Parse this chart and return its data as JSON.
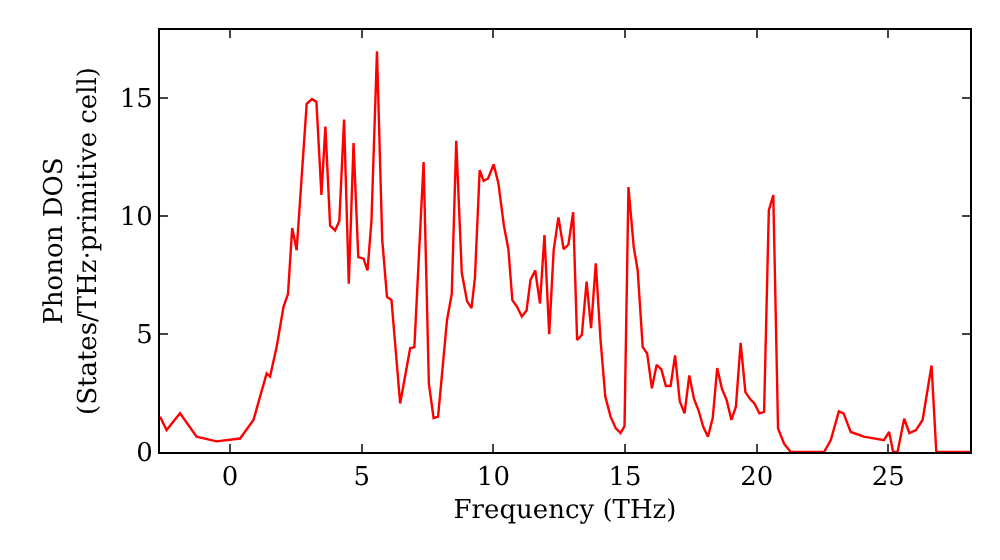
{
  "chart_data": {
    "type": "line",
    "xlabel": "Frequency (THz)",
    "ylabel": "Phonon DOS\n(States/THz·primitive cell)",
    "xlim": [
      -2.66,
      28.1
    ],
    "ylim": [
      0,
      17.9
    ],
    "xticks": [
      0,
      5,
      10,
      15,
      20,
      25
    ],
    "yticks": [
      0,
      5,
      10,
      15
    ],
    "grid": false,
    "marker": "none",
    "line_style": "solid",
    "series": [
      {
        "color": "#ff0000",
        "x": [
          -2.66,
          -2.41,
          -1.9,
          -1.27,
          -0.51,
          0.38,
          0.89,
          1.39,
          1.52,
          1.77,
          2.03,
          2.2,
          2.36,
          2.53,
          2.91,
          3.11,
          3.28,
          3.47,
          3.62,
          3.8,
          3.99,
          4.15,
          4.33,
          4.51,
          4.69,
          4.87,
          5.07,
          5.22,
          5.37,
          5.58,
          5.78,
          5.96,
          6.13,
          6.46,
          6.84,
          7.0,
          7.35,
          7.55,
          7.73,
          7.9,
          8.24,
          8.42,
          8.59,
          8.8,
          9.0,
          9.17,
          9.3,
          9.48,
          9.63,
          9.8,
          10.01,
          10.19,
          10.4,
          10.57,
          10.72,
          10.9,
          11.08,
          11.26,
          11.41,
          11.59,
          11.77,
          11.94,
          12.12,
          12.29,
          12.47,
          12.67,
          12.85,
          13.03,
          13.18,
          13.36,
          13.54,
          13.71,
          13.89,
          14.07,
          14.25,
          14.45,
          14.65,
          14.83,
          14.98,
          15.13,
          15.33,
          15.48,
          15.67,
          15.84,
          16.02,
          16.2,
          16.38,
          16.55,
          16.73,
          16.9,
          17.08,
          17.26,
          17.44,
          17.62,
          17.79,
          17.97,
          18.15,
          18.33,
          18.5,
          18.68,
          18.86,
          19.04,
          19.21,
          19.39,
          19.57,
          19.75,
          19.92,
          20.1,
          20.28,
          20.46,
          20.63,
          20.81,
          21.04,
          21.29,
          22.56,
          22.81,
          23.12,
          23.3,
          23.57,
          24.07,
          24.83,
          25.03,
          25.18,
          25.35,
          25.6,
          25.8,
          26.05,
          26.3,
          26.64,
          26.82,
          28.1
        ],
        "values": [
          1.5,
          0.93,
          1.64,
          0.65,
          0.45,
          0.57,
          1.36,
          3.33,
          3.2,
          4.46,
          6.16,
          6.7,
          9.5,
          8.56,
          14.77,
          14.97,
          14.85,
          10.9,
          13.8,
          9.6,
          9.4,
          9.8,
          14.1,
          7.14,
          13.1,
          8.27,
          8.2,
          7.7,
          9.8,
          17.0,
          9.0,
          6.58,
          6.45,
          2.06,
          4.4,
          4.45,
          12.3,
          2.9,
          1.44,
          1.5,
          5.6,
          6.7,
          13.2,
          7.6,
          6.4,
          6.1,
          7.4,
          11.95,
          11.5,
          11.6,
          12.2,
          11.4,
          9.6,
          8.6,
          6.44,
          6.16,
          5.75,
          6.0,
          7.3,
          7.7,
          6.3,
          9.2,
          5.0,
          8.56,
          9.95,
          8.6,
          8.8,
          10.17,
          4.75,
          4.97,
          7.23,
          5.25,
          8.0,
          4.75,
          2.35,
          1.5,
          1.0,
          0.8,
          1.1,
          11.24,
          8.7,
          7.7,
          4.46,
          4.18,
          2.7,
          3.7,
          3.5,
          2.8,
          2.8,
          4.1,
          2.14,
          1.64,
          3.25,
          2.25,
          1.77,
          1.07,
          0.65,
          1.44,
          3.56,
          2.68,
          2.2,
          1.36,
          1.92,
          4.63,
          2.54,
          2.25,
          2.05,
          1.64,
          1.7,
          10.25,
          10.9,
          1.0,
          0.35,
          0,
          0,
          0.5,
          1.72,
          1.64,
          0.85,
          0.65,
          0.5,
          0.85,
          0,
          0,
          1.41,
          0.8,
          0.93,
          1.36,
          3.67,
          0,
          0
        ]
      }
    ]
  }
}
